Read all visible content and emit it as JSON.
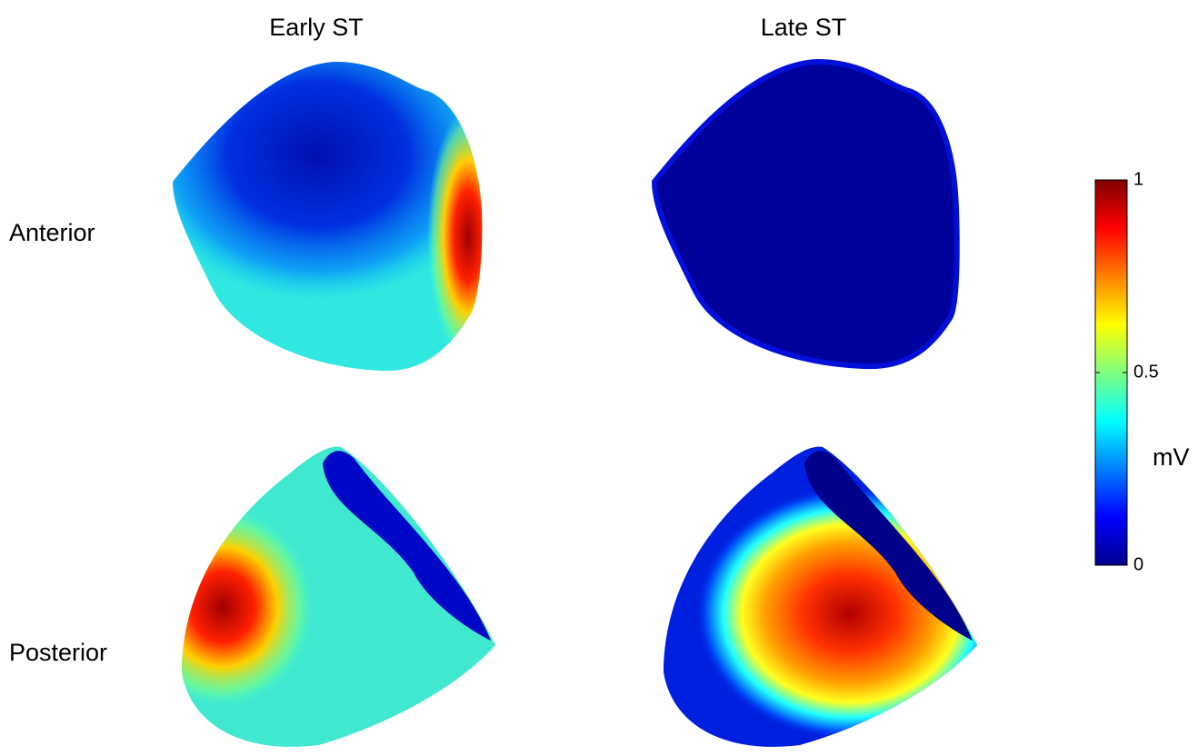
{
  "columns": [
    "Early ST",
    "Late ST"
  ],
  "rows": [
    "Anterior",
    "Posterior"
  ],
  "colorbar": {
    "label": "mV",
    "lim": [
      0,
      1
    ],
    "ticks": [
      0,
      0.5,
      1
    ]
  }
}
